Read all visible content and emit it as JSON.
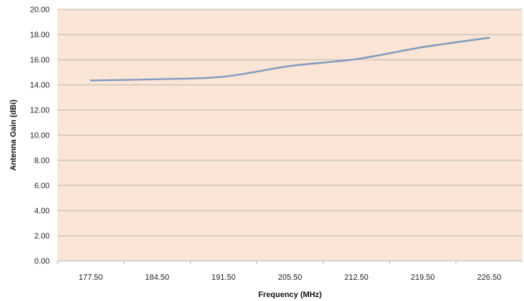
{
  "chart_data": {
    "type": "line",
    "title": "",
    "xlabel": "Frequency (MHz)",
    "ylabel": "Antenna Gain (dBi)",
    "categories": [
      "177.50",
      "184.50",
      "191.50",
      "205.50",
      "212.50",
      "219.50",
      "226.50"
    ],
    "series": [
      {
        "values": [
          14.35,
          14.45,
          14.65,
          15.5,
          16.05,
          17.0,
          17.75
        ]
      }
    ],
    "ylim": [
      0,
      20
    ],
    "yticks": [
      "0.00",
      "2.00",
      "4.00",
      "6.00",
      "8.00",
      "10.00",
      "12.00",
      "14.00",
      "16.00",
      "18.00",
      "20.00"
    ],
    "grid": true,
    "legend": "none",
    "colors": {
      "plot_background": "#fbe5d6",
      "gridline": "#bfb6ae",
      "line": "#7f99bf"
    }
  }
}
